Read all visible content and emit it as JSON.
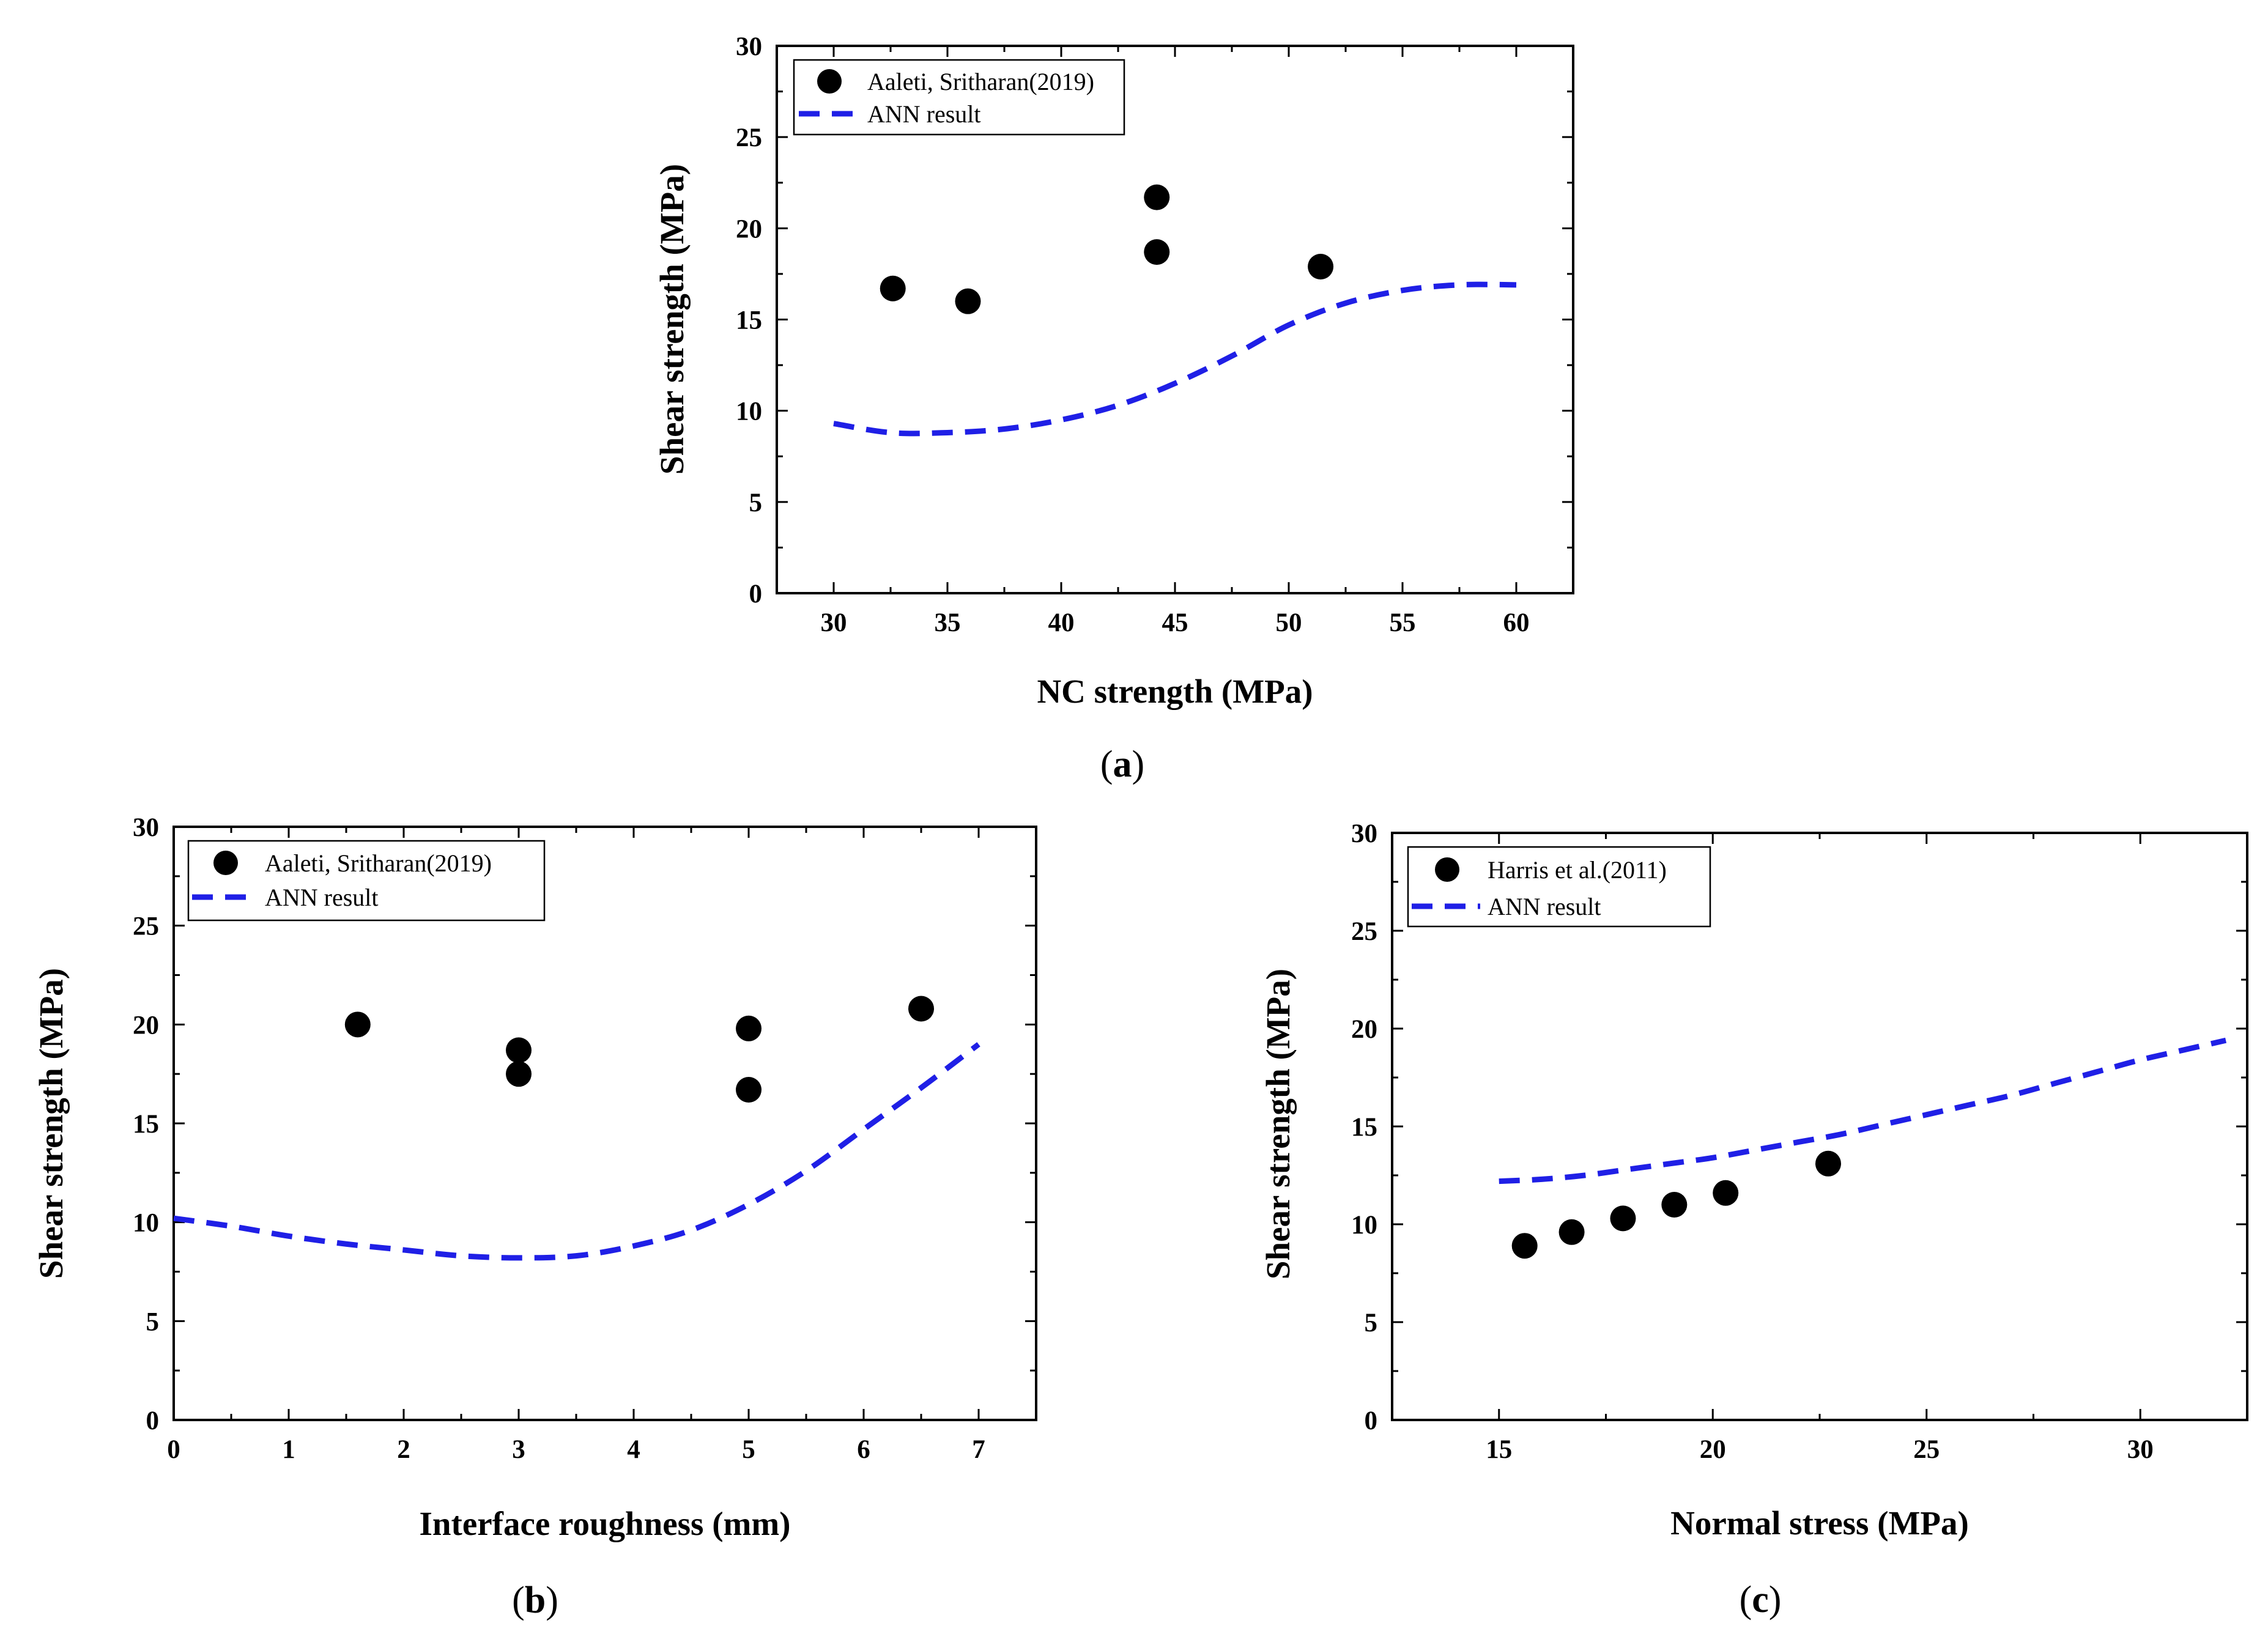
{
  "colors": {
    "points": "#000000",
    "ann_line": "#1f1fe6"
  },
  "chart_data": [
    {
      "id": "a",
      "type": "scatter",
      "caption": {
        "open": "(",
        "letter": "a",
        "close": ")"
      },
      "xlabel": "NC strength (MPa)",
      "ylabel": "Shear strength (MPa)",
      "xlim": [
        27.5,
        62.5
      ],
      "ylim": [
        0,
        30
      ],
      "xticks": [
        "30",
        "35",
        "40",
        "45",
        "50",
        "55",
        "60"
      ],
      "yticks": [
        "0",
        "5",
        "10",
        "15",
        "20",
        "25",
        "30"
      ],
      "legend_position": "top-left",
      "series": [
        {
          "name": "Aaleti, Sritharan(2019)",
          "kind": "scatter",
          "points": [
            [
              32.6,
              16.7
            ],
            [
              35.9,
              16.0
            ],
            [
              44.2,
              21.7
            ],
            [
              44.2,
              18.7
            ],
            [
              51.4,
              17.9
            ]
          ]
        },
        {
          "name": "ANN result",
          "kind": "line",
          "points": [
            [
              30,
              9.3
            ],
            [
              32.5,
              8.8
            ],
            [
              35,
              8.8
            ],
            [
              37.5,
              9.0
            ],
            [
              40,
              9.5
            ],
            [
              42.5,
              10.3
            ],
            [
              45,
              11.5
            ],
            [
              47.5,
              13.0
            ],
            [
              50,
              14.7
            ],
            [
              52.5,
              15.9
            ],
            [
              55,
              16.6
            ],
            [
              57.5,
              16.9
            ],
            [
              60,
              16.9
            ]
          ]
        }
      ]
    },
    {
      "id": "b",
      "type": "scatter",
      "caption": {
        "open": "(",
        "letter": "b",
        "close": ")"
      },
      "xlabel": "Interface roughness (mm)",
      "ylabel": "Shear strength (MPa)",
      "xlim": [
        0,
        7.5
      ],
      "ylim": [
        0,
        30
      ],
      "xticks": [
        "0",
        "1",
        "2",
        "3",
        "4",
        "5",
        "6",
        "7"
      ],
      "yticks": [
        "0",
        "5",
        "10",
        "15",
        "20",
        "25",
        "30"
      ],
      "legend_position": "top-left",
      "series": [
        {
          "name": "Aaleti, Sritharan(2019)",
          "kind": "scatter",
          "points": [
            [
              1.6,
              20.0
            ],
            [
              3.0,
              18.7
            ],
            [
              3.0,
              17.5
            ],
            [
              5.0,
              19.8
            ],
            [
              5.0,
              16.7
            ],
            [
              6.5,
              20.8
            ]
          ]
        },
        {
          "name": "ANN result",
          "kind": "line",
          "points": [
            [
              0,
              10.2
            ],
            [
              0.5,
              9.8
            ],
            [
              1,
              9.3
            ],
            [
              1.5,
              8.9
            ],
            [
              2,
              8.6
            ],
            [
              2.5,
              8.3
            ],
            [
              3,
              8.2
            ],
            [
              3.5,
              8.3
            ],
            [
              4,
              8.8
            ],
            [
              4.5,
              9.6
            ],
            [
              5,
              10.9
            ],
            [
              5.5,
              12.6
            ],
            [
              6,
              14.7
            ],
            [
              6.5,
              16.8
            ],
            [
              7,
              19.0
            ]
          ]
        }
      ]
    },
    {
      "id": "c",
      "type": "scatter",
      "caption": {
        "open": "(",
        "letter": "c",
        "close": ")"
      },
      "xlabel": "Normal stress (MPa)",
      "ylabel": "Shear strength (MPa)",
      "xlim": [
        12.5,
        32.5
      ],
      "ylim": [
        0,
        30
      ],
      "xticks": [
        "15",
        "20",
        "25",
        "30"
      ],
      "yticks": [
        "0",
        "5",
        "10",
        "15",
        "20",
        "25",
        "30"
      ],
      "legend_position": "top-left",
      "series": [
        {
          "name": "Harris et al.(2011)",
          "kind": "scatter",
          "points": [
            [
              15.6,
              8.9
            ],
            [
              16.7,
              9.6
            ],
            [
              17.9,
              10.3
            ],
            [
              19.1,
              11.0
            ],
            [
              20.3,
              11.6
            ],
            [
              22.7,
              13.1
            ]
          ]
        },
        {
          "name": "ANN result",
          "kind": "line",
          "points": [
            [
              15,
              12.2
            ],
            [
              16,
              12.3
            ],
            [
              17,
              12.5
            ],
            [
              18,
              12.8
            ],
            [
              19,
              13.1
            ],
            [
              20,
              13.4
            ],
            [
              21,
              13.8
            ],
            [
              22,
              14.2
            ],
            [
              23,
              14.6
            ],
            [
              24,
              15.1
            ],
            [
              25,
              15.6
            ],
            [
              26,
              16.1
            ],
            [
              27,
              16.6
            ],
            [
              28,
              17.2
            ],
            [
              29,
              17.8
            ],
            [
              30,
              18.4
            ],
            [
              31,
              18.9
            ],
            [
              32,
              19.4
            ]
          ]
        }
      ]
    }
  ]
}
